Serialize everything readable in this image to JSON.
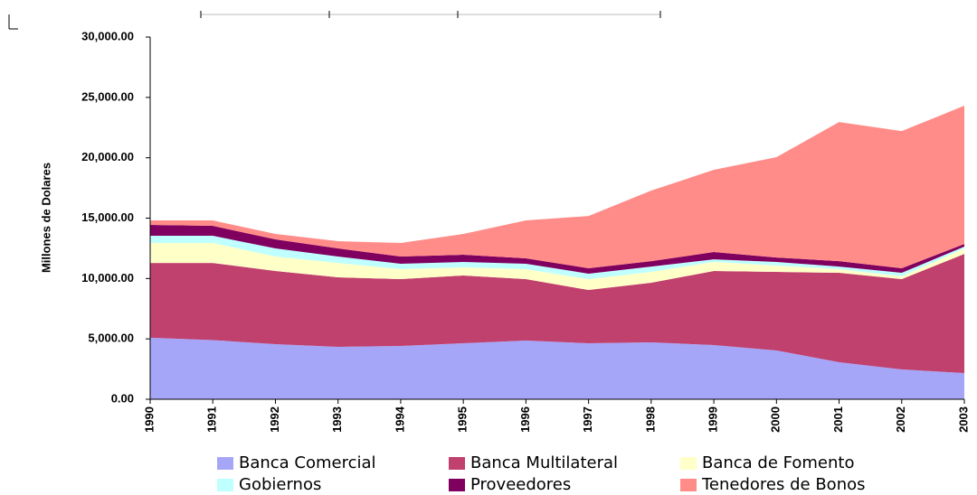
{
  "chart_data": {
    "type": "area",
    "stacked": true,
    "y_label": "Millones de Dolares",
    "categories": [
      "1990",
      "1991",
      "1992",
      "1993",
      "1994",
      "1995",
      "1996",
      "1997",
      "1998",
      "1999",
      "2000",
      "2001",
      "2002",
      "2003"
    ],
    "series": [
      {
        "name": "Banca Comercial",
        "color": "#a6a6f8",
        "values": [
          5100,
          4900,
          4560,
          4340,
          4410,
          4640,
          4860,
          4640,
          4710,
          4490,
          4040,
          3070,
          2470,
          2170
        ]
      },
      {
        "name": "Banca Multilateral",
        "color": "#c0406e",
        "values": [
          6190,
          6390,
          6060,
          5760,
          5540,
          5610,
          5090,
          4410,
          4940,
          6130,
          6510,
          7400,
          7480,
          9870
        ]
      },
      {
        "name": "Banca de Fomento",
        "color": "#ffffc8",
        "values": [
          1650,
          1650,
          1200,
          1190,
          820,
          670,
          820,
          900,
          900,
          750,
          520,
          300,
          220,
          450
        ]
      },
      {
        "name": "Gobiernos",
        "color": "#c0ffff",
        "values": [
          600,
          600,
          670,
          530,
          450,
          450,
          450,
          450,
          440,
          220,
          300,
          220,
          300,
          150
        ]
      },
      {
        "name": "Proveedores",
        "color": "#800060",
        "values": [
          900,
          820,
          750,
          670,
          600,
          600,
          450,
          450,
          450,
          600,
          370,
          450,
          380,
          220
        ]
      },
      {
        "name": "Tenedores de Bonos",
        "color": "#ff8c88",
        "values": [
          370,
          450,
          450,
          600,
          1120,
          1720,
          3140,
          4330,
          5840,
          6810,
          8310,
          11520,
          11360,
          11450
        ]
      }
    ],
    "ylim": [
      0,
      30000
    ],
    "yticks": [
      {
        "value": 0,
        "label": "0.00"
      },
      {
        "value": 5000,
        "label": "5,000.00"
      },
      {
        "value": 10000,
        "label": "10,000.00"
      },
      {
        "value": 15000,
        "label": "15,000.00"
      },
      {
        "value": 20000,
        "label": "20,000.00"
      },
      {
        "value": 25000,
        "label": "25,000.00"
      },
      {
        "value": 30000,
        "label": "30,000.00"
      }
    ],
    "grid": false,
    "legend": "bottom"
  }
}
